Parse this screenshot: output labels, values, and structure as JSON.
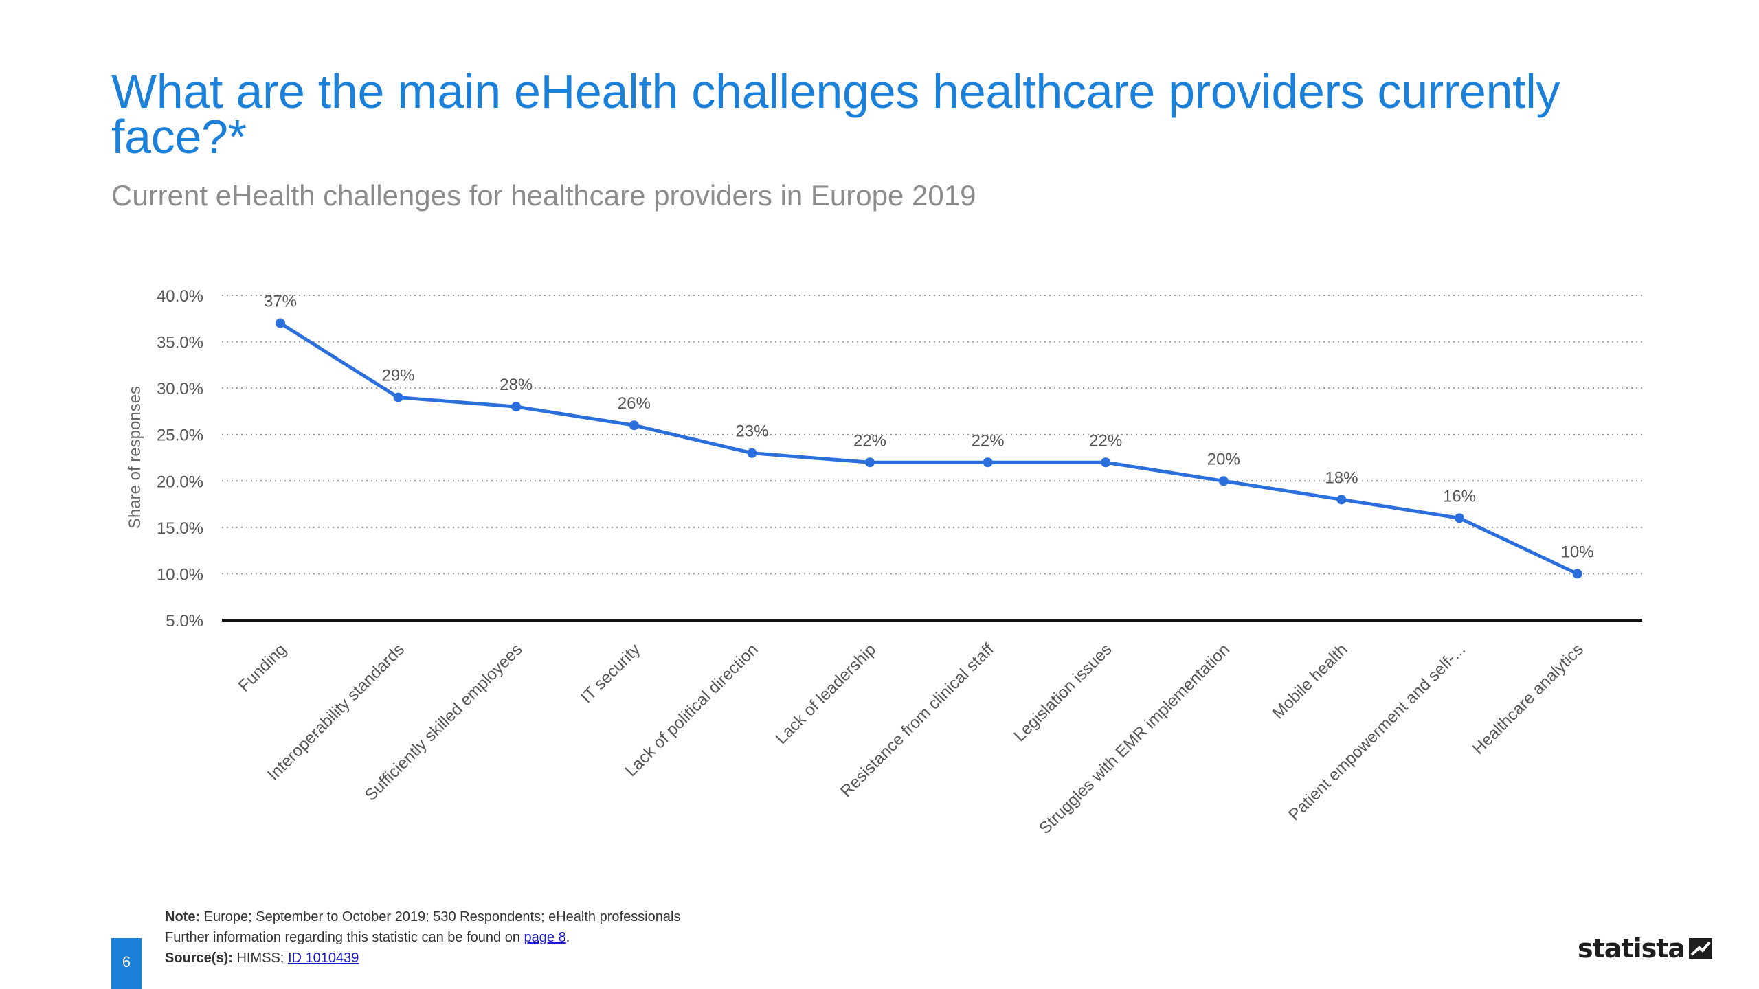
{
  "header": {
    "title": "What are the main eHealth challenges healthcare providers currently face?*",
    "subtitle": "Current eHealth challenges for healthcare providers in Europe 2019"
  },
  "chart_data": {
    "type": "line",
    "title": "What are the main eHealth challenges healthcare providers currently face?*",
    "subtitle": "Current eHealth challenges for healthcare providers in Europe 2019",
    "xlabel": "",
    "ylabel": "Share of responses",
    "ylim": [
      5,
      40
    ],
    "yticks": [
      "40.0%",
      "35.0%",
      "30.0%",
      "25.0%",
      "20.0%",
      "15.0%",
      "10.0%",
      "5.0%"
    ],
    "categories": [
      "Funding",
      "Interoperability standards",
      "Sufficiently skilled employees",
      "IT security",
      "Lack of political direction",
      "Lack of leadership",
      "Resistance from clinical staff",
      "Legislation issues",
      "Struggles with EMR implementation",
      "Mobile health",
      "Patient empowerment and self-...",
      "Healthcare analytics"
    ],
    "values": [
      37,
      29,
      28,
      26,
      23,
      22,
      22,
      22,
      20,
      18,
      16,
      10
    ],
    "data_labels": [
      "37%",
      "29%",
      "28%",
      "26%",
      "23%",
      "22%",
      "22%",
      "22%",
      "20%",
      "18%",
      "16%",
      "10%"
    ],
    "grid": true,
    "legend": "none"
  },
  "footer": {
    "note_label": "Note:",
    "note_text": "Europe; September to October 2019; 530 Respondents; eHealth professionals",
    "info_text": "Further information regarding this statistic can be found on",
    "info_link": "page 8",
    "info_end": ".",
    "source_label": "Source(s):",
    "source_text": "HIMSS;",
    "source_link": "ID 1010439",
    "page_number": "6",
    "brand": "statista"
  },
  "colors": {
    "title": "#1a80d9",
    "line": "#2a6fdb",
    "subtitle": "#8c8c8c",
    "badge": "#1a80d9"
  }
}
